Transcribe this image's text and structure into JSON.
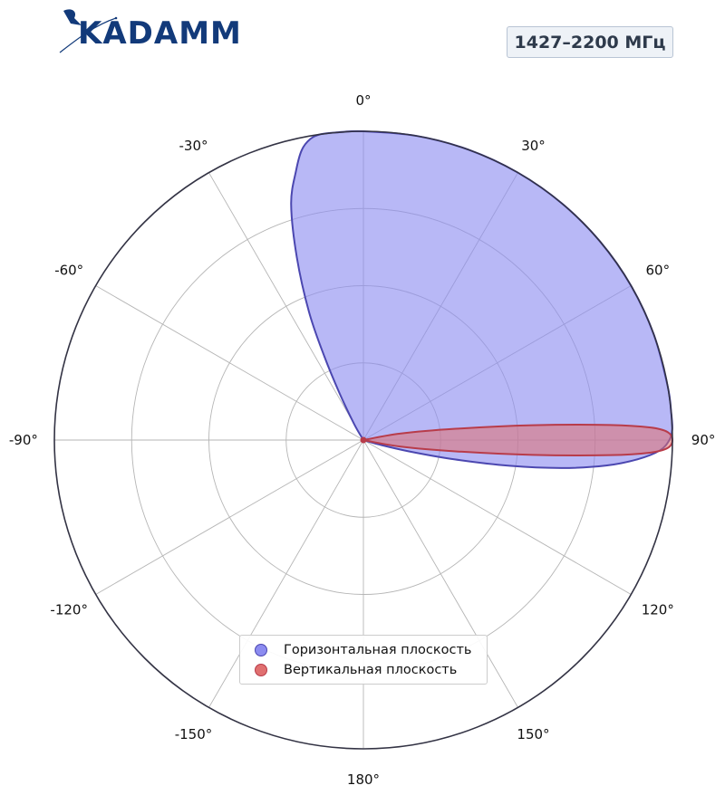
{
  "header": {
    "logo_text": "KADAMM",
    "frequency_badge": "1427–2200 МГц"
  },
  "colors": {
    "brand": "#123a7a",
    "horizontal_fill": "#8c8cf0",
    "horizontal_stroke": "#4b47b0",
    "vertical_fill": "#e07070",
    "vertical_stroke": "#b83c4a"
  },
  "chart_data": {
    "type": "polar",
    "angle_ticks": [
      "0°",
      "30°",
      "60°",
      "90°",
      "120°",
      "150°",
      "180°",
      "-150°",
      "-120°",
      "-90°",
      "-60°",
      "-30°"
    ],
    "angle_values": [
      0,
      30,
      60,
      90,
      120,
      150,
      180,
      -150,
      -120,
      -90,
      -60,
      -30
    ],
    "radial_range": [
      0,
      1
    ],
    "radial_gridlines": [
      0.25,
      0.5,
      0.75
    ],
    "grid": true,
    "legend_position": "bottom-center",
    "series": [
      {
        "name": "Горизонтальная плоскость",
        "color": "#8c8cf0",
        "stroke": "#4b47b0",
        "points": [
          [
            -35,
            0
          ],
          [
            -30,
            0.06
          ],
          [
            -27,
            0.17
          ],
          [
            -25,
            0.3
          ],
          [
            -23,
            0.45
          ],
          [
            -20,
            0.63
          ],
          [
            -17,
            0.8
          ],
          [
            -14,
            0.9
          ],
          [
            -12,
            0.96
          ],
          [
            -10,
            0.99
          ],
          [
            -8,
            1.0
          ],
          [
            -5,
            1.0
          ],
          [
            0,
            1.0
          ],
          [
            10,
            1.0
          ],
          [
            20,
            1.0
          ],
          [
            30,
            1.0
          ],
          [
            40,
            1.0
          ],
          [
            50,
            1.0
          ],
          [
            60,
            1.0
          ],
          [
            70,
            1.0
          ],
          [
            80,
            1.0
          ],
          [
            85,
            1.0
          ],
          [
            88,
            1.0
          ],
          [
            90,
            0.99
          ],
          [
            92,
            0.96
          ],
          [
            94,
            0.89
          ],
          [
            96,
            0.79
          ],
          [
            98,
            0.65
          ],
          [
            100,
            0.48
          ],
          [
            102,
            0.3
          ],
          [
            104,
            0.15
          ],
          [
            106,
            0.05
          ],
          [
            108,
            0
          ]
        ]
      },
      {
        "name": "Вертикальная плоскость",
        "color": "#e07070",
        "stroke": "#b83c4a",
        "points": [
          [
            75,
            0
          ],
          [
            80,
            0.12
          ],
          [
            83,
            0.3
          ],
          [
            85,
            0.55
          ],
          [
            86.5,
            0.8
          ],
          [
            87.5,
            0.93
          ],
          [
            88.5,
            0.985
          ],
          [
            90,
            1.0
          ],
          [
            91.5,
            0.985
          ],
          [
            92.5,
            0.93
          ],
          [
            93.5,
            0.8
          ],
          [
            95,
            0.55
          ],
          [
            97,
            0.3
          ],
          [
            100,
            0.12
          ],
          [
            105,
            0
          ]
        ]
      }
    ]
  }
}
